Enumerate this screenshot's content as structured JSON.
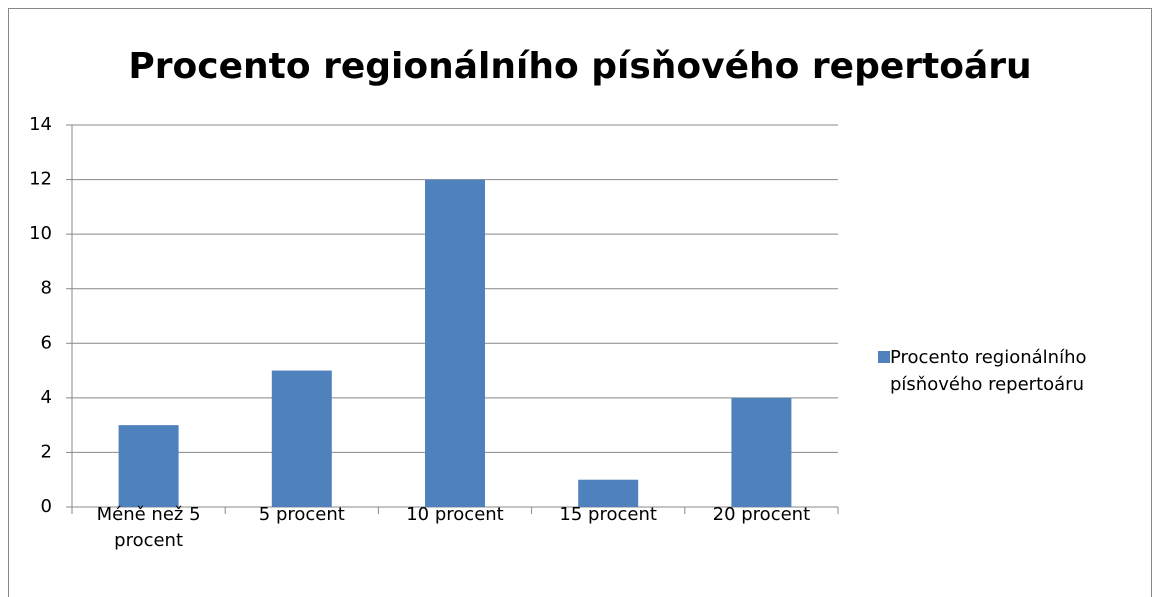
{
  "chart_data": {
    "type": "bar",
    "title": "Procento regionálního písňového repertoáru",
    "categories": [
      "Méně než 5 procent",
      "5 procent",
      "10 procent",
      "15 procent",
      "20 procent"
    ],
    "series": [
      {
        "name": "Procento regionálního písňového repertoáru",
        "color": "#4f81bd",
        "values": [
          3,
          5,
          12,
          1,
          4
        ]
      }
    ],
    "ylim": [
      0,
      14
    ],
    "yticks": [
      0,
      2,
      4,
      6,
      8,
      10,
      12,
      14
    ],
    "grid": true,
    "legend": "right"
  }
}
